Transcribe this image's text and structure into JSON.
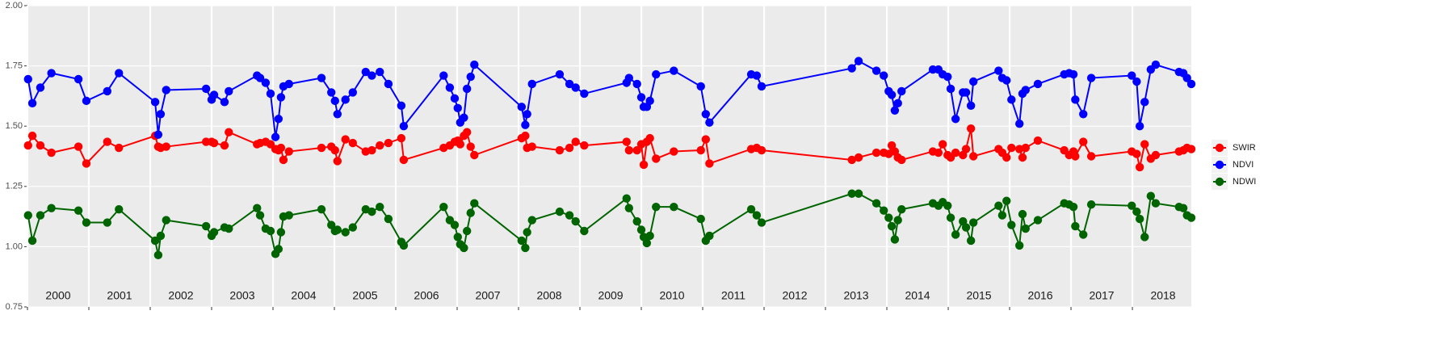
{
  "chart_data": {
    "type": "line",
    "categories": [
      "2000",
      "2001",
      "2002",
      "2003",
      "2004",
      "2005",
      "2006",
      "2007",
      "2008",
      "2009",
      "2010",
      "2011",
      "2012",
      "2013",
      "2014",
      "2015",
      "2016",
      "2017",
      "2018"
    ],
    "x": [
      2000.01,
      2000.08,
      2000.21,
      2000.39,
      2000.83,
      2000.96,
      2001.3,
      2001.49,
      2002.08,
      2002.13,
      2002.17,
      2002.26,
      2002.91,
      2003.0,
      2003.04,
      2003.21,
      2003.28,
      2003.74,
      2003.79,
      2003.88,
      2003.96,
      2004.04,
      2004.09,
      2004.13,
      2004.17,
      2004.26,
      2004.79,
      2004.95,
      2005.01,
      2005.05,
      2005.18,
      2005.3,
      2005.51,
      2005.61,
      2005.74,
      2005.88,
      2006.09,
      2006.13,
      2006.78,
      2006.88,
      2006.96,
      2007.01,
      2007.05,
      2007.11,
      2007.16,
      2007.22,
      2007.28,
      2008.05,
      2008.11,
      2008.14,
      2008.22,
      2008.67,
      2008.83,
      2008.93,
      2009.07,
      2009.76,
      2009.8,
      2009.93,
      2010.0,
      2010.04,
      2010.09,
      2010.14,
      2010.24,
      2010.53,
      2010.97,
      2011.05,
      2011.11,
      2011.79,
      2011.88,
      2011.96,
      2013.43,
      2013.54,
      2013.83,
      2013.95,
      2014.03,
      2014.08,
      2014.13,
      2014.18,
      2014.24,
      2014.75,
      2014.84,
      2014.91,
      2014.99,
      2015.04,
      2015.12,
      2015.24,
      2015.29,
      2015.37,
      2015.41,
      2015.82,
      2015.88,
      2015.95,
      2016.03,
      2016.16,
      2016.21,
      2016.26,
      2016.46,
      2016.89,
      2016.97,
      2017.04,
      2017.07,
      2017.2,
      2017.33,
      2017.99,
      2018.07,
      2018.12,
      2018.2,
      2018.3,
      2018.38,
      2018.76,
      2018.83,
      2018.89,
      2018.96
    ],
    "series": [
      {
        "name": "SWIR",
        "color": "#ff0000",
        "values": [
          1.42,
          1.46,
          1.42,
          1.39,
          1.415,
          1.345,
          1.435,
          1.41,
          1.46,
          1.415,
          1.41,
          1.415,
          1.435,
          1.435,
          1.43,
          1.42,
          1.475,
          1.425,
          1.43,
          1.435,
          1.425,
          1.405,
          1.4,
          1.41,
          1.36,
          1.395,
          1.41,
          1.415,
          1.4,
          1.355,
          1.445,
          1.43,
          1.395,
          1.4,
          1.42,
          1.43,
          1.45,
          1.36,
          1.41,
          1.42,
          1.435,
          1.44,
          1.425,
          1.46,
          1.475,
          1.415,
          1.38,
          1.45,
          1.46,
          1.41,
          1.415,
          1.4,
          1.41,
          1.435,
          1.42,
          1.435,
          1.4,
          1.4,
          1.425,
          1.34,
          1.435,
          1.45,
          1.365,
          1.395,
          1.4,
          1.445,
          1.345,
          1.405,
          1.41,
          1.4,
          1.36,
          1.37,
          1.39,
          1.39,
          1.385,
          1.42,
          1.395,
          1.37,
          1.36,
          1.395,
          1.39,
          1.425,
          1.38,
          1.37,
          1.39,
          1.38,
          1.405,
          1.49,
          1.375,
          1.405,
          1.39,
          1.37,
          1.41,
          1.405,
          1.37,
          1.41,
          1.44,
          1.4,
          1.38,
          1.395,
          1.375,
          1.435,
          1.375,
          1.395,
          1.385,
          1.33,
          1.425,
          1.365,
          1.38,
          1.395,
          1.4,
          1.41,
          1.405
        ]
      },
      {
        "name": "NDVI",
        "color": "#0000ff",
        "values": [
          1.695,
          1.595,
          1.66,
          1.72,
          1.695,
          1.605,
          1.645,
          1.72,
          1.6,
          1.465,
          1.55,
          1.65,
          1.655,
          1.61,
          1.63,
          1.6,
          1.645,
          1.71,
          1.7,
          1.68,
          1.635,
          1.455,
          1.53,
          1.62,
          1.665,
          1.675,
          1.7,
          1.64,
          1.605,
          1.55,
          1.61,
          1.64,
          1.725,
          1.71,
          1.725,
          1.675,
          1.585,
          1.5,
          1.71,
          1.66,
          1.615,
          1.575,
          1.515,
          1.535,
          1.655,
          1.705,
          1.755,
          1.58,
          1.505,
          1.55,
          1.675,
          1.715,
          1.675,
          1.66,
          1.635,
          1.68,
          1.7,
          1.675,
          1.62,
          1.58,
          1.58,
          1.605,
          1.715,
          1.73,
          1.665,
          1.55,
          1.515,
          1.715,
          1.71,
          1.665,
          1.74,
          1.77,
          1.73,
          1.71,
          1.645,
          1.63,
          1.565,
          1.595,
          1.645,
          1.735,
          1.735,
          1.715,
          1.705,
          1.655,
          1.53,
          1.64,
          1.64,
          1.585,
          1.685,
          1.73,
          1.7,
          1.69,
          1.61,
          1.51,
          1.635,
          1.65,
          1.675,
          1.715,
          1.72,
          1.715,
          1.61,
          1.55,
          1.7,
          1.71,
          1.685,
          1.5,
          1.6,
          1.735,
          1.755,
          1.725,
          1.72,
          1.7,
          1.675
        ]
      },
      {
        "name": "NDWI",
        "color": "#006400",
        "values": [
          1.13,
          1.025,
          1.13,
          1.16,
          1.15,
          1.1,
          1.1,
          1.155,
          1.025,
          0.965,
          1.045,
          1.11,
          1.085,
          1.045,
          1.06,
          1.08,
          1.075,
          1.16,
          1.13,
          1.075,
          1.065,
          0.97,
          0.99,
          1.06,
          1.125,
          1.13,
          1.155,
          1.09,
          1.065,
          1.07,
          1.06,
          1.08,
          1.155,
          1.145,
          1.165,
          1.115,
          1.02,
          1.005,
          1.165,
          1.11,
          1.09,
          1.04,
          1.01,
          0.995,
          1.065,
          1.14,
          1.18,
          1.025,
          0.995,
          1.06,
          1.11,
          1.145,
          1.13,
          1.105,
          1.065,
          1.2,
          1.16,
          1.105,
          1.07,
          1.04,
          1.015,
          1.045,
          1.165,
          1.165,
          1.115,
          1.025,
          1.045,
          1.155,
          1.13,
          1.1,
          1.22,
          1.22,
          1.18,
          1.15,
          1.12,
          1.085,
          1.03,
          1.11,
          1.155,
          1.18,
          1.17,
          1.185,
          1.17,
          1.12,
          1.05,
          1.105,
          1.08,
          1.025,
          1.1,
          1.17,
          1.13,
          1.19,
          1.09,
          1.005,
          1.135,
          1.075,
          1.11,
          1.18,
          1.175,
          1.165,
          1.085,
          1.05,
          1.175,
          1.17,
          1.145,
          1.115,
          1.04,
          1.21,
          1.18,
          1.165,
          1.16,
          1.13,
          1.12
        ]
      }
    ],
    "xlim": [
      2000,
      2018.96
    ],
    "xticks": [
      2000,
      2001,
      2002,
      2003,
      2004,
      2005,
      2006,
      2007,
      2008,
      2009,
      2010,
      2011,
      2012,
      2013,
      2014,
      2015,
      2016,
      2017,
      2018
    ],
    "ylim": [
      0.75,
      2
    ],
    "yticks": [
      0.75,
      {
        "value": 1,
        "label": "1.00"
      },
      1.25,
      {
        "value": 1.5,
        "label": "1.50"
      },
      1.75,
      {
        "value": 2,
        "label": "2.00"
      }
    ],
    "grid": true,
    "legend": "right"
  }
}
